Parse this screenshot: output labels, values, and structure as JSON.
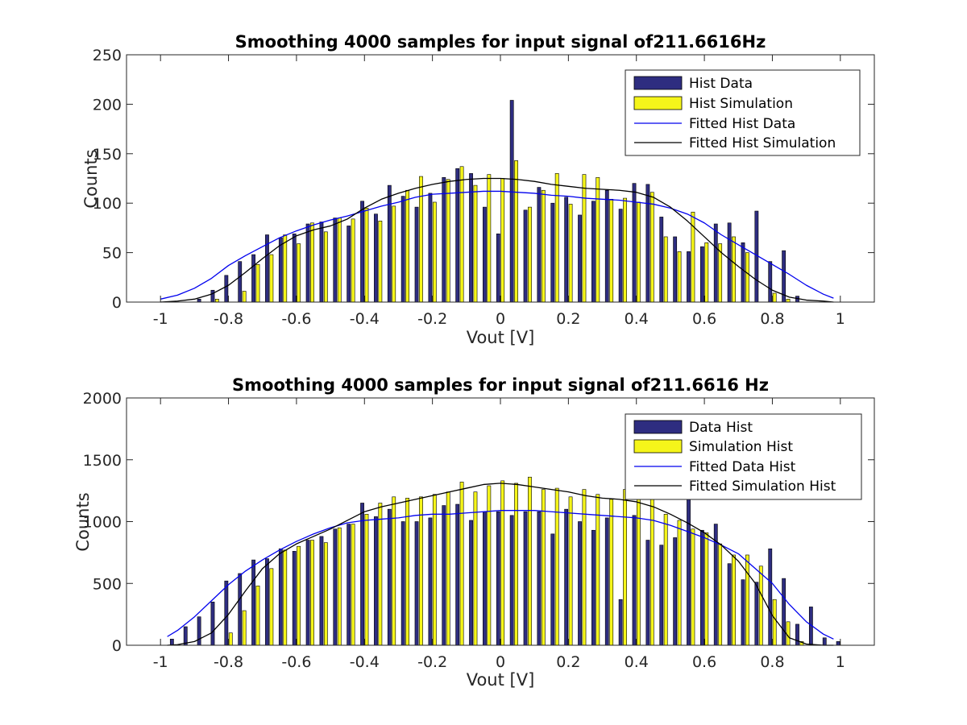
{
  "colors": {
    "data_bar": "#2e2d80",
    "sim_bar": "#f5f51a",
    "data_fit": "#0000ee",
    "sim_fit": "#000000"
  },
  "chart_data": [
    {
      "type": "bar",
      "title": "Smoothing 4000 samples for input signal of211.6616Hz",
      "xlabel": "Vout [V]",
      "ylabel": "Counts",
      "xlim": [
        -1.1,
        1.1
      ],
      "ylim": [
        0,
        250
      ],
      "xticks": [
        "-1",
        "-0.8",
        "-0.6",
        "-0.4",
        "-0.2",
        "0",
        "0.2",
        "0.4",
        "0.6",
        "0.8",
        "1"
      ],
      "yticks": [
        "0",
        "50",
        "100",
        "150",
        "200",
        "250"
      ],
      "legend_position": "top-right",
      "legend": [
        "Hist Data",
        "Hist Simulation",
        "Fitted Hist Data",
        "Fitted Hist Simulation"
      ],
      "bin_centers": [
        -0.88,
        -0.84,
        -0.8,
        -0.76,
        -0.72,
        -0.68,
        -0.64,
        -0.6,
        -0.56,
        -0.52,
        -0.48,
        -0.44,
        -0.4,
        -0.36,
        -0.32,
        -0.28,
        -0.24,
        -0.2,
        -0.16,
        -0.12,
        -0.08,
        -0.04,
        0.0,
        0.04,
        0.08,
        0.12,
        0.16,
        0.2,
        0.24,
        0.28,
        0.32,
        0.36,
        0.4,
        0.44,
        0.48,
        0.52,
        0.56,
        0.6,
        0.64,
        0.68,
        0.72,
        0.76,
        0.8,
        0.84,
        0.88
      ],
      "series": [
        {
          "name": "Hist Data",
          "kind": "bar",
          "values": [
            3,
            12,
            27,
            41,
            48,
            68,
            65,
            69,
            79,
            81,
            85,
            77,
            102,
            89,
            118,
            107,
            96,
            110,
            126,
            135,
            130,
            96,
            69,
            204,
            93,
            116,
            100,
            106,
            88,
            102,
            113,
            94,
            120,
            119,
            86,
            66,
            51,
            56,
            79,
            80,
            60,
            92,
            41,
            52,
            6
          ]
        },
        {
          "name": "Hist Simulation",
          "kind": "bar",
          "values": [
            0,
            3,
            0,
            11,
            38,
            48,
            68,
            59,
            80,
            71,
            85,
            84,
            95,
            82,
            97,
            113,
            127,
            101,
            124,
            137,
            118,
            129,
            125,
            143,
            96,
            113,
            130,
            99,
            129,
            126,
            104,
            105,
            101,
            111,
            66,
            51,
            91,
            60,
            59,
            66,
            50,
            0,
            9,
            3,
            0
          ]
        },
        {
          "name": "Fitted Hist Data",
          "kind": "line",
          "x": [
            -1.0,
            -0.95,
            -0.9,
            -0.85,
            -0.8,
            -0.75,
            -0.7,
            -0.65,
            -0.6,
            -0.55,
            -0.5,
            -0.45,
            -0.4,
            -0.35,
            -0.3,
            -0.25,
            -0.2,
            -0.15,
            -0.1,
            -0.05,
            0.0,
            0.05,
            0.1,
            0.15,
            0.2,
            0.25,
            0.3,
            0.35,
            0.4,
            0.45,
            0.5,
            0.55,
            0.6,
            0.65,
            0.7,
            0.75,
            0.8,
            0.85,
            0.9,
            0.95,
            0.98
          ],
          "values": [
            3,
            7,
            14,
            24,
            37,
            47,
            56,
            65,
            72,
            78,
            83,
            87,
            92,
            97,
            101,
            106,
            109,
            110,
            111,
            112,
            112,
            111,
            110,
            108,
            107,
            105,
            104,
            103,
            101,
            99,
            95,
            89,
            80,
            68,
            58,
            48,
            38,
            28,
            17,
            8,
            4
          ]
        },
        {
          "name": "Fitted Hist Simulation",
          "kind": "line",
          "x": [
            -1.0,
            -0.95,
            -0.9,
            -0.85,
            -0.8,
            -0.75,
            -0.7,
            -0.65,
            -0.6,
            -0.55,
            -0.5,
            -0.45,
            -0.4,
            -0.35,
            -0.3,
            -0.25,
            -0.2,
            -0.15,
            -0.1,
            -0.05,
            0.0,
            0.05,
            0.1,
            0.15,
            0.2,
            0.25,
            0.3,
            0.35,
            0.4,
            0.45,
            0.5,
            0.55,
            0.6,
            0.65,
            0.7,
            0.75,
            0.8,
            0.85,
            0.9,
            0.95,
            0.98
          ],
          "values": [
            0,
            1,
            3,
            8,
            17,
            30,
            44,
            57,
            67,
            73,
            77,
            84,
            95,
            104,
            110,
            115,
            119,
            122,
            124,
            125,
            125,
            124,
            122,
            119,
            117,
            115,
            114,
            113,
            111,
            106,
            96,
            82,
            66,
            50,
            36,
            23,
            12,
            5,
            2,
            1,
            0
          ]
        }
      ]
    },
    {
      "type": "bar",
      "title": "Smoothing 4000 samples for input signal of211.6616 Hz",
      "xlabel": "Vout [V]",
      "ylabel": "Counts",
      "xlim": [
        -1.1,
        1.1
      ],
      "ylim": [
        0,
        2000
      ],
      "xticks": [
        "-1",
        "-0.8",
        "-0.6",
        "-0.4",
        "-0.2",
        "0",
        "0.2",
        "0.4",
        "0.6",
        "0.8",
        "1"
      ],
      "yticks": [
        "0",
        "500",
        "1000",
        "1500",
        "2000"
      ],
      "legend_position": "top-right",
      "legend": [
        "Data Hist",
        "Simulation Hist",
        "Fitted Data Hist",
        "Fitted Simulation Hist"
      ],
      "bin_centers": [
        -0.96,
        -0.92,
        -0.88,
        -0.84,
        -0.8,
        -0.76,
        -0.72,
        -0.68,
        -0.64,
        -0.6,
        -0.56,
        -0.52,
        -0.48,
        -0.44,
        -0.4,
        -0.36,
        -0.32,
        -0.28,
        -0.24,
        -0.2,
        -0.16,
        -0.12,
        -0.08,
        -0.04,
        0.0,
        0.04,
        0.08,
        0.12,
        0.16,
        0.2,
        0.24,
        0.28,
        0.32,
        0.36,
        0.4,
        0.44,
        0.48,
        0.52,
        0.56,
        0.6,
        0.64,
        0.68,
        0.72,
        0.76,
        0.8,
        0.84,
        0.88,
        0.92,
        0.96,
        1.0
      ],
      "series": [
        {
          "name": "Data Hist",
          "kind": "bar",
          "values": [
            50,
            150,
            230,
            350,
            520,
            580,
            690,
            700,
            780,
            760,
            850,
            880,
            940,
            980,
            1150,
            1040,
            1100,
            1000,
            1000,
            1030,
            1130,
            1140,
            1010,
            1080,
            1080,
            1050,
            1080,
            1080,
            900,
            1100,
            1000,
            930,
            1030,
            370,
            1050,
            850,
            810,
            870,
            1200,
            930,
            980,
            660,
            530,
            510,
            780,
            540,
            170,
            310,
            60,
            30
          ]
        },
        {
          "name": "Simulation Hist",
          "kind": "bar",
          "values": [
            0,
            0,
            0,
            0,
            100,
            280,
            480,
            620,
            770,
            800,
            850,
            830,
            950,
            980,
            1060,
            1150,
            1200,
            1190,
            1200,
            1220,
            1240,
            1320,
            1240,
            1290,
            1330,
            1310,
            1360,
            1260,
            1270,
            1200,
            1260,
            1220,
            1180,
            1260,
            1190,
            1200,
            1060,
            1010,
            940,
            910,
            820,
            730,
            730,
            640,
            370,
            190,
            30,
            0,
            0,
            0
          ]
        },
        {
          "name": "Fitted Data Hist",
          "kind": "line",
          "x": [
            -0.98,
            -0.95,
            -0.9,
            -0.85,
            -0.8,
            -0.75,
            -0.7,
            -0.65,
            -0.6,
            -0.55,
            -0.5,
            -0.45,
            -0.4,
            -0.35,
            -0.3,
            -0.25,
            -0.2,
            -0.15,
            -0.1,
            -0.05,
            0.0,
            0.05,
            0.1,
            0.15,
            0.2,
            0.25,
            0.3,
            0.35,
            0.4,
            0.45,
            0.5,
            0.55,
            0.6,
            0.65,
            0.7,
            0.75,
            0.8,
            0.85,
            0.9,
            0.95,
            0.98
          ],
          "values": [
            70,
            120,
            230,
            360,
            490,
            600,
            690,
            770,
            840,
            900,
            950,
            990,
            1010,
            1020,
            1030,
            1050,
            1060,
            1060,
            1070,
            1080,
            1090,
            1090,
            1090,
            1080,
            1070,
            1060,
            1050,
            1040,
            1030,
            1010,
            970,
            920,
            870,
            810,
            740,
            620,
            500,
            330,
            190,
            90,
            50
          ]
        },
        {
          "name": "Fitted Simulation Hist",
          "kind": "line",
          "x": [
            -0.98,
            -0.95,
            -0.9,
            -0.85,
            -0.8,
            -0.75,
            -0.7,
            -0.65,
            -0.6,
            -0.55,
            -0.5,
            -0.45,
            -0.4,
            -0.35,
            -0.3,
            -0.25,
            -0.2,
            -0.15,
            -0.1,
            -0.05,
            0.0,
            0.05,
            0.1,
            0.15,
            0.2,
            0.25,
            0.3,
            0.35,
            0.4,
            0.45,
            0.5,
            0.55,
            0.6,
            0.65,
            0.7,
            0.75,
            0.8,
            0.85,
            0.9,
            0.95,
            0.98
          ],
          "values": [
            0,
            5,
            30,
            100,
            250,
            440,
            620,
            740,
            820,
            880,
            940,
            1010,
            1080,
            1120,
            1150,
            1180,
            1210,
            1240,
            1270,
            1300,
            1310,
            1300,
            1280,
            1260,
            1240,
            1210,
            1190,
            1180,
            1160,
            1120,
            1060,
            990,
            910,
            810,
            680,
            500,
            240,
            60,
            10,
            0,
            0
          ]
        }
      ]
    }
  ]
}
